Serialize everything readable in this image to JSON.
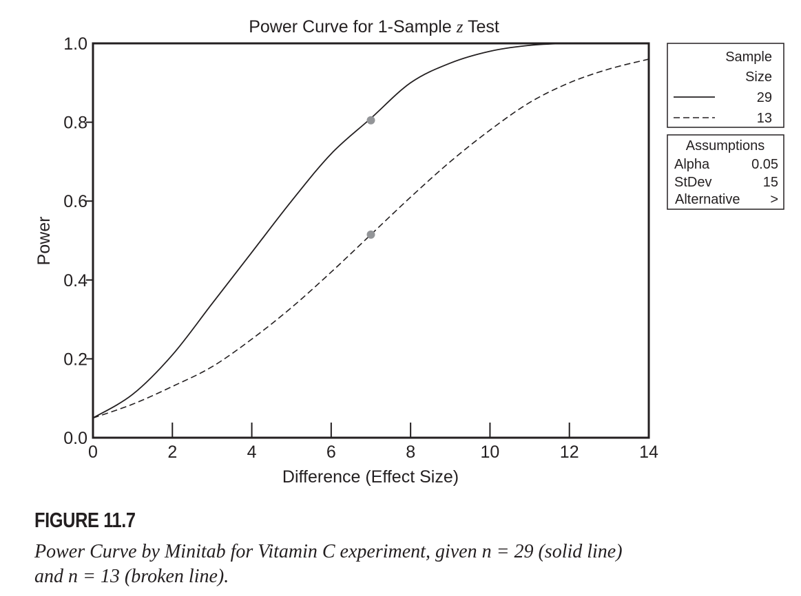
{
  "chart_data": {
    "type": "line",
    "title_prefix": "Power Curve for 1-Sample ",
    "title_var": "z",
    "title_suffix": " Test",
    "xlabel": "Difference (Effect Size)",
    "ylabel": "Power",
    "xlim": [
      0,
      14
    ],
    "ylim": [
      0,
      1
    ],
    "xticks": [
      0,
      2,
      4,
      6,
      8,
      10,
      12,
      14
    ],
    "yticks": [
      "0.0",
      "0.2",
      "0.4",
      "0.6",
      "0.8",
      "1.0"
    ],
    "grid": false,
    "legend_placement": "right",
    "legend": {
      "header": [
        "Sample",
        "Size"
      ],
      "entries": [
        {
          "label": "29",
          "style": "solid"
        },
        {
          "label": "13",
          "style": "dashed"
        }
      ]
    },
    "assumptions": {
      "title": "Assumptions",
      "rows": [
        {
          "name": "Alpha",
          "value": "0.05"
        },
        {
          "name": "StDev",
          "value": "15"
        },
        {
          "name": "Alternative",
          "value": ">"
        }
      ]
    },
    "series": [
      {
        "sample_size": 29,
        "style": "solid",
        "x": [
          0,
          1,
          2,
          3,
          4,
          5,
          6,
          7,
          8,
          9,
          10,
          11,
          12,
          12.4
        ],
        "y": [
          0.05,
          0.11,
          0.21,
          0.34,
          0.47,
          0.6,
          0.72,
          0.81,
          0.9,
          0.95,
          0.98,
          0.995,
          1.0,
          1.0
        ]
      },
      {
        "sample_size": 13,
        "style": "dashed",
        "x": [
          0,
          1,
          2,
          3,
          4,
          5,
          6,
          7,
          8,
          9,
          10,
          11,
          12,
          13,
          14
        ],
        "y": [
          0.05,
          0.085,
          0.13,
          0.18,
          0.25,
          0.33,
          0.42,
          0.515,
          0.61,
          0.7,
          0.78,
          0.85,
          0.9,
          0.935,
          0.96
        ]
      }
    ],
    "markers": [
      {
        "x": 7,
        "y": 0.805,
        "color": "#939598"
      },
      {
        "x": 7,
        "y": 0.515,
        "color": "#939598"
      }
    ]
  },
  "figure": {
    "label": "FIGURE 11.7",
    "caption_line1": "Power Curve by Minitab for Vitamin C experiment, given n = 29 (solid line)",
    "caption_line2": "and n = 13 (broken line)."
  }
}
